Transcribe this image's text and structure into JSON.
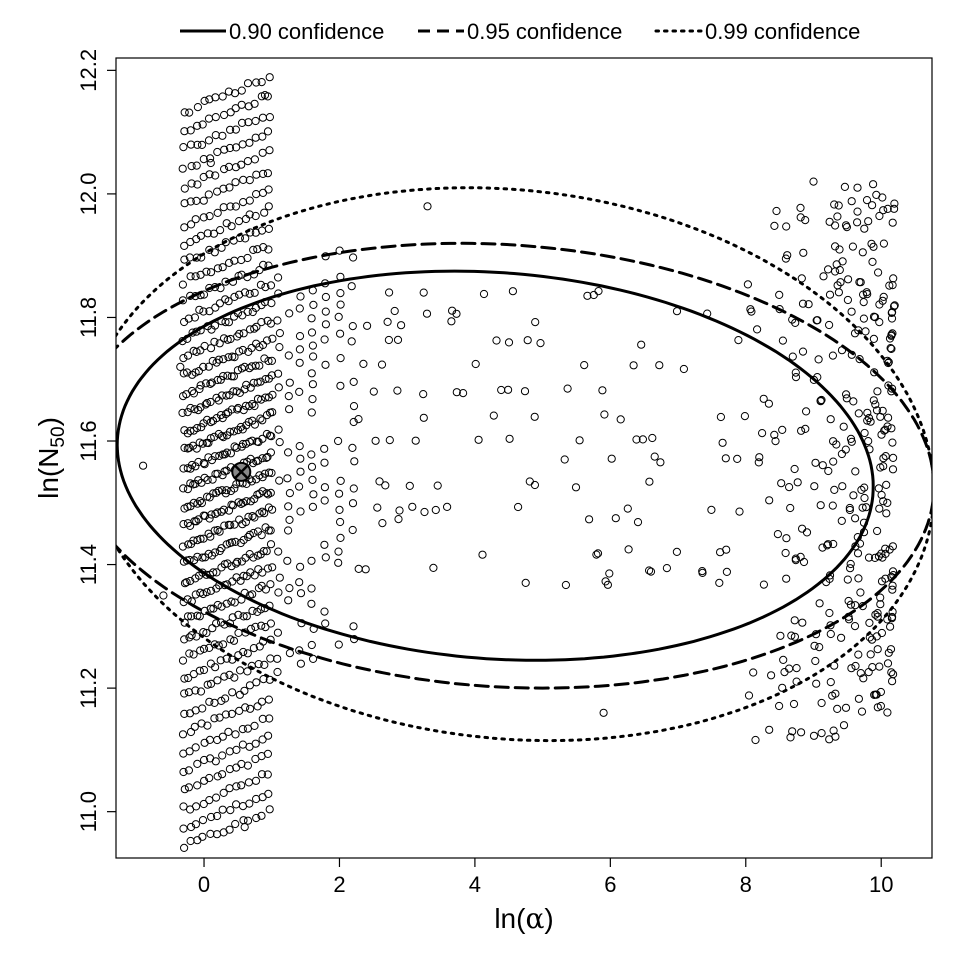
{
  "chart_data": {
    "type": "scatter",
    "title": "",
    "xlabel_main": "ln(",
    "xlabel_greek": "α",
    "xlabel_close": ")",
    "ylabel_main": "ln(N",
    "ylabel_sub": "50",
    "ylabel_close": ")",
    "xlim": [
      -1.3,
      10.75
    ],
    "ylim": [
      10.925,
      12.22
    ],
    "x_ticks": [
      0,
      2,
      4,
      6,
      8,
      10
    ],
    "y_ticks": [
      11.0,
      11.2,
      11.4,
      11.6,
      11.8,
      12.0,
      12.2
    ],
    "x_tick_labels": [
      "0",
      "2",
      "4",
      "6",
      "8",
      "10"
    ],
    "y_tick_labels": [
      "11.0",
      "11.2",
      "11.4",
      "11.6",
      "11.8",
      "12.0",
      "12.2"
    ],
    "legend": [
      {
        "label": "0.90 confidence",
        "style": "solid"
      },
      {
        "label": "0.95 confidence",
        "style": "dashed"
      },
      {
        "label": "0.99 confidence",
        "style": "dotted"
      }
    ],
    "legend_position": "top, outside plot",
    "point_estimate": {
      "x": 0.55,
      "y": 11.55
    },
    "ellipses": [
      {
        "name": "0.90 confidence",
        "style": "solid",
        "center": [
          4.3,
          11.56
        ],
        "x_min": -1.3,
        "x_max": 9.85,
        "y_min": 11.245,
        "y_max": 11.875
      },
      {
        "name": "0.95 confidence",
        "style": "dashed",
        "center": [
          4.4,
          11.56
        ],
        "x_max": 10.75,
        "y_min": 11.2,
        "y_max": 11.92
      },
      {
        "name": "0.99 confidence",
        "style": "dotted",
        "center": [
          4.5,
          11.56
        ],
        "x_max": 10.75,
        "y_min": 11.115,
        "y_max": 12.01
      }
    ],
    "bootstrap_clusters": [
      {
        "name": "main cluster near ln(alpha)=0",
        "x_range": [
          -0.3,
          1.05
        ],
        "y_range": [
          10.97,
          12.16
        ],
        "shape": "sheared bands",
        "bands": 40
      },
      {
        "name": "cluster near ln(alpha)=9.5",
        "x_range": [
          7.9,
          10.2
        ],
        "y_range": [
          11.13,
          12.02
        ],
        "shape": "sheared bands",
        "bands": 12
      },
      {
        "name": "sparse mid-range arcs",
        "x_range": [
          1.0,
          8.0
        ],
        "y_range": [
          11.15,
          11.95
        ],
        "shape": "arc rows",
        "bands": 10
      }
    ]
  }
}
